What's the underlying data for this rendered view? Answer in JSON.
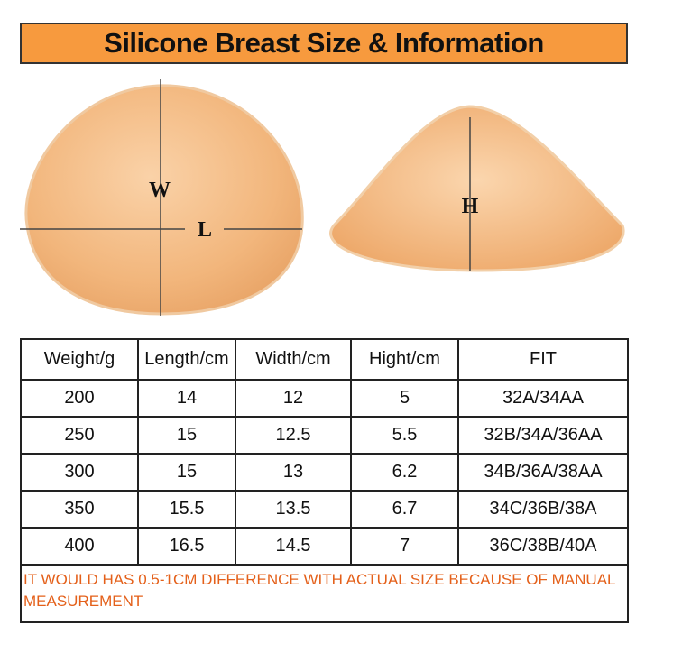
{
  "header": {
    "title": "Silicone Breast Size & Information"
  },
  "diagram": {
    "width_label": "W",
    "length_label": "L",
    "height_label": "H"
  },
  "table": {
    "columns": [
      "Weight/g",
      "Length/cm",
      "Width/cm",
      "Hight/cm",
      "FIT"
    ],
    "rows": [
      [
        "200",
        "14",
        "12",
        "5",
        "32A/34AA"
      ],
      [
        "250",
        "15",
        "12.5",
        "5.5",
        "32B/34A/36AA"
      ],
      [
        "300",
        "15",
        "13",
        "6.2",
        "34B/36A/38AA"
      ],
      [
        "350",
        "15.5",
        "13.5",
        "6.7",
        "34C/36B/38A"
      ],
      [
        "400",
        "16.5",
        "14.5",
        "7",
        "36C/38B/40A"
      ]
    ],
    "note": "IT WOULD HAS 0.5-1CM DIFFERENCE WITH ACTUAL SIZE BECAUSE OF MANUAL MEASUREMENT"
  }
}
